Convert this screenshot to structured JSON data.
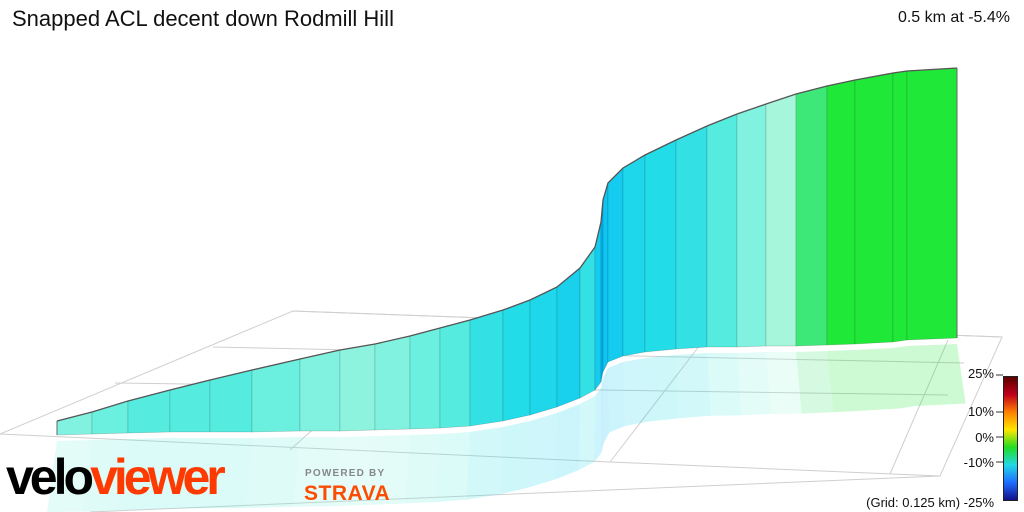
{
  "title": "Snapped ACL decent down Rodmill Hill",
  "summary": "0.5 km at -5.4%",
  "grid_note": "(Grid: 0.125 km) -25%",
  "legend": {
    "ticks": [
      "25%",
      "10%",
      "0%",
      "-10%"
    ],
    "stops": [
      "#5a0000",
      "#c0001a",
      "#ff7f00",
      "#ffe600",
      "#22dd22",
      "#22d8e6",
      "#1e6eff",
      "#12108c"
    ]
  },
  "brand": {
    "part1": "velo",
    "part2": "viewer",
    "powered_by": "POWERED BY",
    "partner": "STRAVA"
  },
  "chart_data": {
    "type": "area",
    "title": "Snapped ACL decent down Rodmill Hill",
    "distance_km": 0.5,
    "avg_gradient_pct": -5.4,
    "grid_spacing_km": 0.125,
    "gradient_scale_pct": [
      -25,
      25
    ],
    "segment_gradients_pct": [
      -2,
      -3,
      -4,
      -4,
      -4,
      -3,
      -2,
      -1,
      -2,
      -3,
      -4,
      -6,
      -7,
      -8,
      -9,
      -6,
      -10,
      -16,
      -12,
      -10,
      -8,
      -7,
      -6,
      -4,
      -2,
      1,
      6,
      9
    ]
  }
}
